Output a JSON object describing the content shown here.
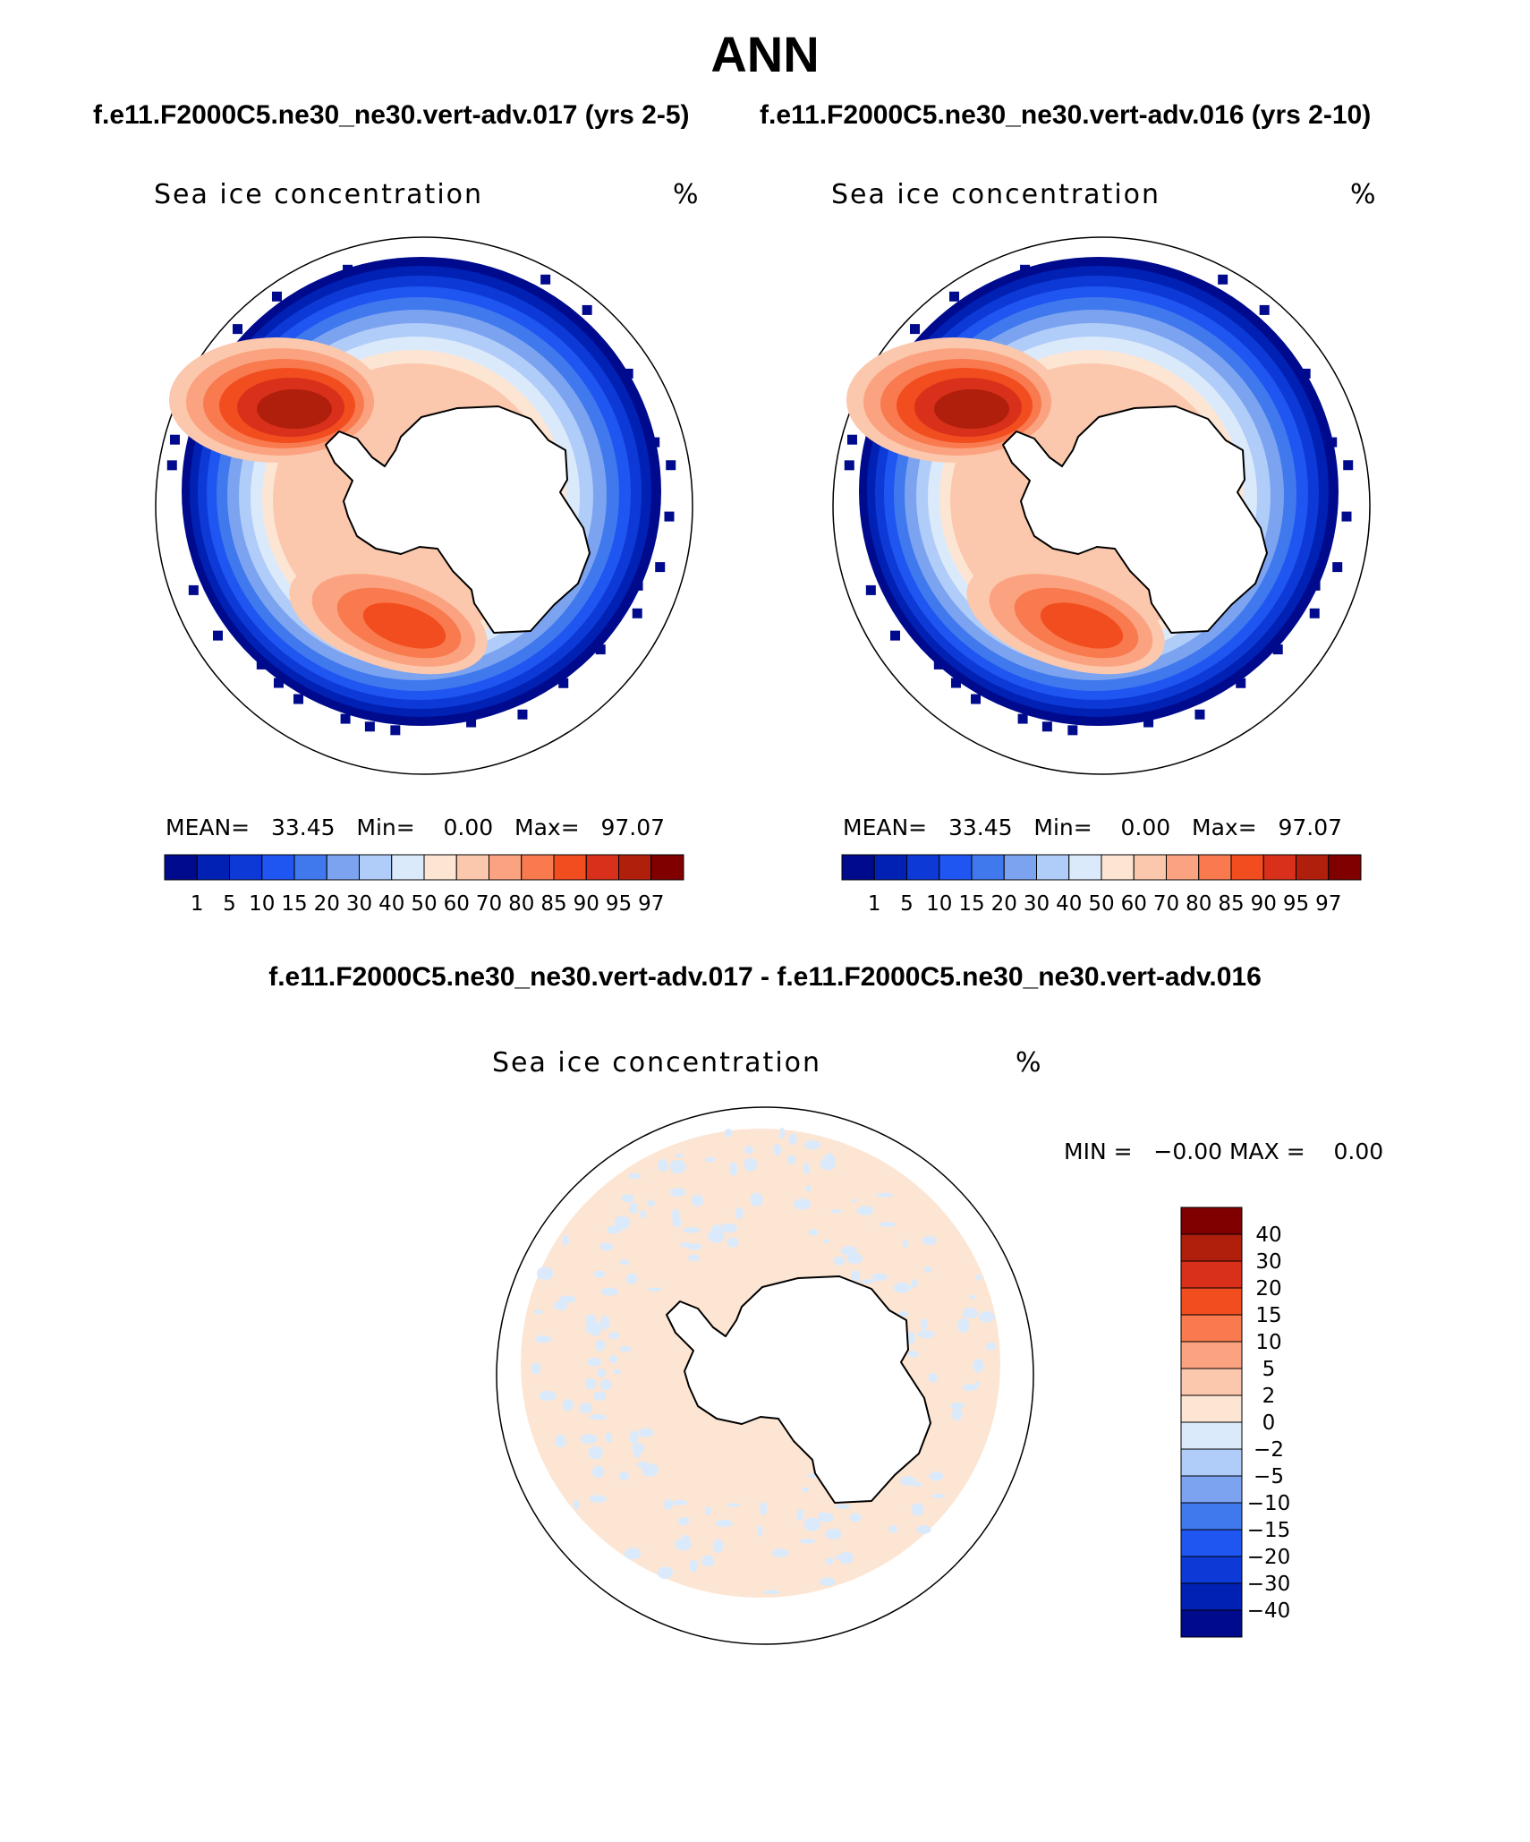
{
  "figure": {
    "title": "ANN",
    "case1_title": "f.e11.F2000C5.ne30_ne30.vert-adv.017 (yrs 2-5)",
    "case2_title": "f.e11.F2000C5.ne30_ne30.vert-adv.016 (yrs 2-10)",
    "diff_title": "f.e11.F2000C5.ne30_ne30.vert-adv.017 - f.e11.F2000C5.ne30_ne30.vert-adv.016"
  },
  "panels": [
    {
      "variable": "Sea ice concentration",
      "units": "%",
      "mean_label": "MEAN=",
      "mean": "33.45",
      "min_label": "Min=",
      "min": "0.00",
      "max_label": "Max=",
      "max": "97.07"
    },
    {
      "variable": "Sea ice concentration",
      "units": "%",
      "mean_label": "MEAN=",
      "mean": "33.45",
      "min_label": "Min=",
      "min": "0.00",
      "max_label": "Max=",
      "max": "97.07"
    },
    {
      "variable": "Sea ice concentration",
      "units": "%",
      "min_label": "MIN =",
      "min": "−0.00",
      "max_label": "MAX =",
      "max": "0.00"
    }
  ],
  "chart_data": [
    {
      "type": "heatmap",
      "projection": "south polar stereographic",
      "title": "Sea ice concentration",
      "units": "%",
      "stats": {
        "mean": 33.45,
        "min": 0.0,
        "max": 97.07
      },
      "levels": [
        1,
        5,
        10,
        15,
        20,
        30,
        40,
        50,
        60,
        70,
        80,
        85,
        90,
        95,
        97
      ],
      "colors": [
        "#000a8c",
        "#0021b4",
        "#0d3ad6",
        "#1f55f0",
        "#4078ee",
        "#7ba3f0",
        "#b0ccf8",
        "#dbeafb",
        "#fde5d3",
        "#fcc8ad",
        "#fba381",
        "#f87a4e",
        "#f24d1f",
        "#d8301a",
        "#b01f0c",
        "#800000"
      ]
    },
    {
      "type": "heatmap",
      "projection": "south polar stereographic",
      "title": "Sea ice concentration",
      "units": "%",
      "stats": {
        "mean": 33.45,
        "min": 0.0,
        "max": 97.07
      },
      "levels": [
        1,
        5,
        10,
        15,
        20,
        30,
        40,
        50,
        60,
        70,
        80,
        85,
        90,
        95,
        97
      ],
      "colors": [
        "#000a8c",
        "#0021b4",
        "#0d3ad6",
        "#1f55f0",
        "#4078ee",
        "#7ba3f0",
        "#b0ccf8",
        "#dbeafb",
        "#fde5d3",
        "#fcc8ad",
        "#fba381",
        "#f87a4e",
        "#f24d1f",
        "#d8301a",
        "#b01f0c",
        "#800000"
      ]
    },
    {
      "type": "heatmap",
      "projection": "south polar stereographic",
      "title": "Sea ice concentration",
      "units": "%",
      "stats": {
        "min": -0.0,
        "max": 0.0
      },
      "levels": [
        40,
        30,
        20,
        15,
        10,
        5,
        2,
        0,
        -2,
        -5,
        -10,
        -15,
        -20,
        -30,
        -40
      ],
      "level_labels": [
        "40",
        "30",
        "20",
        "15",
        "10",
        "5",
        "2",
        "0",
        "−2",
        "−5",
        "−10",
        "−15",
        "−20",
        "−30",
        "−40"
      ],
      "colors": [
        "#800000",
        "#b01f0c",
        "#d8301a",
        "#f24d1f",
        "#f87a4e",
        "#fba381",
        "#fcc8ad",
        "#fde5d3",
        "#dbeafb",
        "#b0ccf8",
        "#7ba3f0",
        "#4078ee",
        "#1f55f0",
        "#0d3ad6",
        "#0021b4",
        "#000a8c"
      ]
    }
  ]
}
